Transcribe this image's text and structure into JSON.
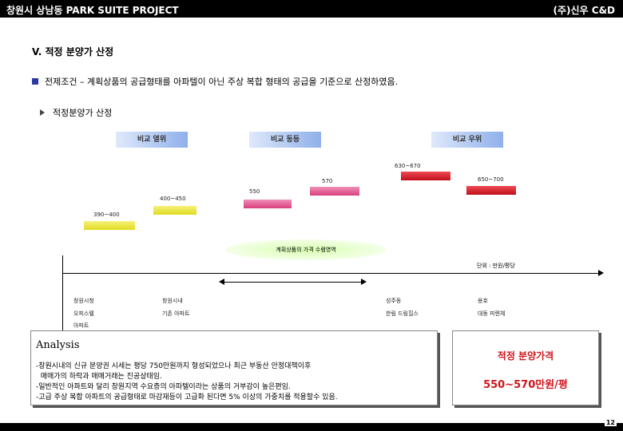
{
  "header": {
    "left": "창원시 상남동 PARK SUITE PROJECT",
    "right": "(주)신우 C&D"
  },
  "section_title": "V. 적정 분양가 산정",
  "premise": "전제조건 – 계획상품의 공급형태를 아파텔이 아닌 주상 복합 형태의 공급을 기준으로 산정하였음.",
  "subhead": "적정분양가 산정",
  "comparison": {
    "left": "비교 열위",
    "center": "비교 동등",
    "right": "비교 우위"
  },
  "price_labels": [
    "390~400",
    "400~450",
    "550",
    "570",
    "630~670",
    "650~700"
  ],
  "bar_colors": {
    "yellow": "#f2ee3a",
    "pink": "#e8478c",
    "red": "#d81e2a"
  },
  "plan_label": "계획상품의 가격 수렴영역",
  "unit_label": "단위 : 만원/평당",
  "comps": {
    "row1": [
      "창원시청",
      "창원시내",
      "성주동",
      "용호"
    ],
    "row2": [
      "오피스텔",
      "기존 아파트",
      "한림 드림힐스",
      "대동 피렌체"
    ],
    "row3": [
      "아파트"
    ]
  },
  "analysis": {
    "title": "Analysis",
    "lines": [
      "-창원시내의 신규 분양권 시세는 평당 750만원까지 형성되었으나 최근 부동산 안정대책이후",
      "  매매가의 하락과 매매거래는 진공상태임.",
      "-일반적인 아파트와 달리 창원지역 수요층의 아파텔이라는 상품의 거부감이 높은편임.",
      "-고급 주상 복합 아파트의 공급형태로 마감재등이 고급화 된다면 5% 이상의 가중치를 적용할수 있음."
    ]
  },
  "price": {
    "heading": "적정 분양가격",
    "value": "550~570만원/평"
  },
  "page_number": "12"
}
